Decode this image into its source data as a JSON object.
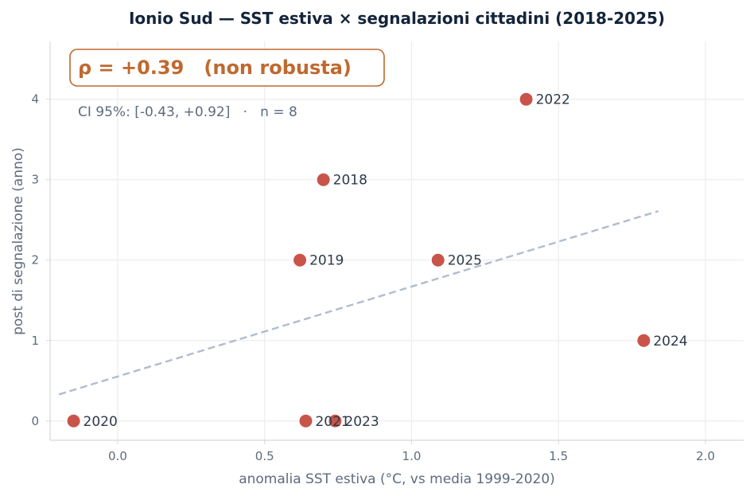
{
  "chart_data": {
    "type": "scatter",
    "title": "Ionio Sud — SST estiva × segnalazioni cittadini (2018-2025)",
    "xlabel": "anomalia SST estiva (°C, vs media 1999-2020)",
    "ylabel": "post di segnalazione (anno)",
    "xlim": [
      -0.23,
      2.13
    ],
    "ylim": [
      -0.24,
      4.72
    ],
    "xticks": [
      "0.0",
      "0.5",
      "1.0",
      "1.5",
      "2.0"
    ],
    "yticks": [
      "0",
      "1",
      "2",
      "3",
      "4"
    ],
    "grid": true,
    "points": [
      {
        "label": "2018",
        "x": 0.7,
        "y": 3
      },
      {
        "label": "2019",
        "x": 0.62,
        "y": 2
      },
      {
        "label": "2020",
        "x": -0.15,
        "y": 0
      },
      {
        "label": "2021",
        "x": 0.64,
        "y": 0
      },
      {
        "label": "2022",
        "x": 1.39,
        "y": 4
      },
      {
        "label": "2023",
        "x": 0.74,
        "y": 0
      },
      {
        "label": "2024",
        "x": 1.79,
        "y": 1
      },
      {
        "label": "2025",
        "x": 1.09,
        "y": 2
      }
    ],
    "trendline": {
      "x": [
        -0.2,
        1.84
      ],
      "y": [
        0.33,
        2.61
      ]
    },
    "annotation": {
      "rho": "ρ = +0.39   (non robusta)",
      "ci": "CI 95%: [-0.43, +0.92]   ·   n = 8"
    },
    "colors": {
      "point": "#c9544a",
      "point_edge": "#ffffff",
      "trend": "#b1bccd",
      "annotation": "#c0692f"
    }
  }
}
